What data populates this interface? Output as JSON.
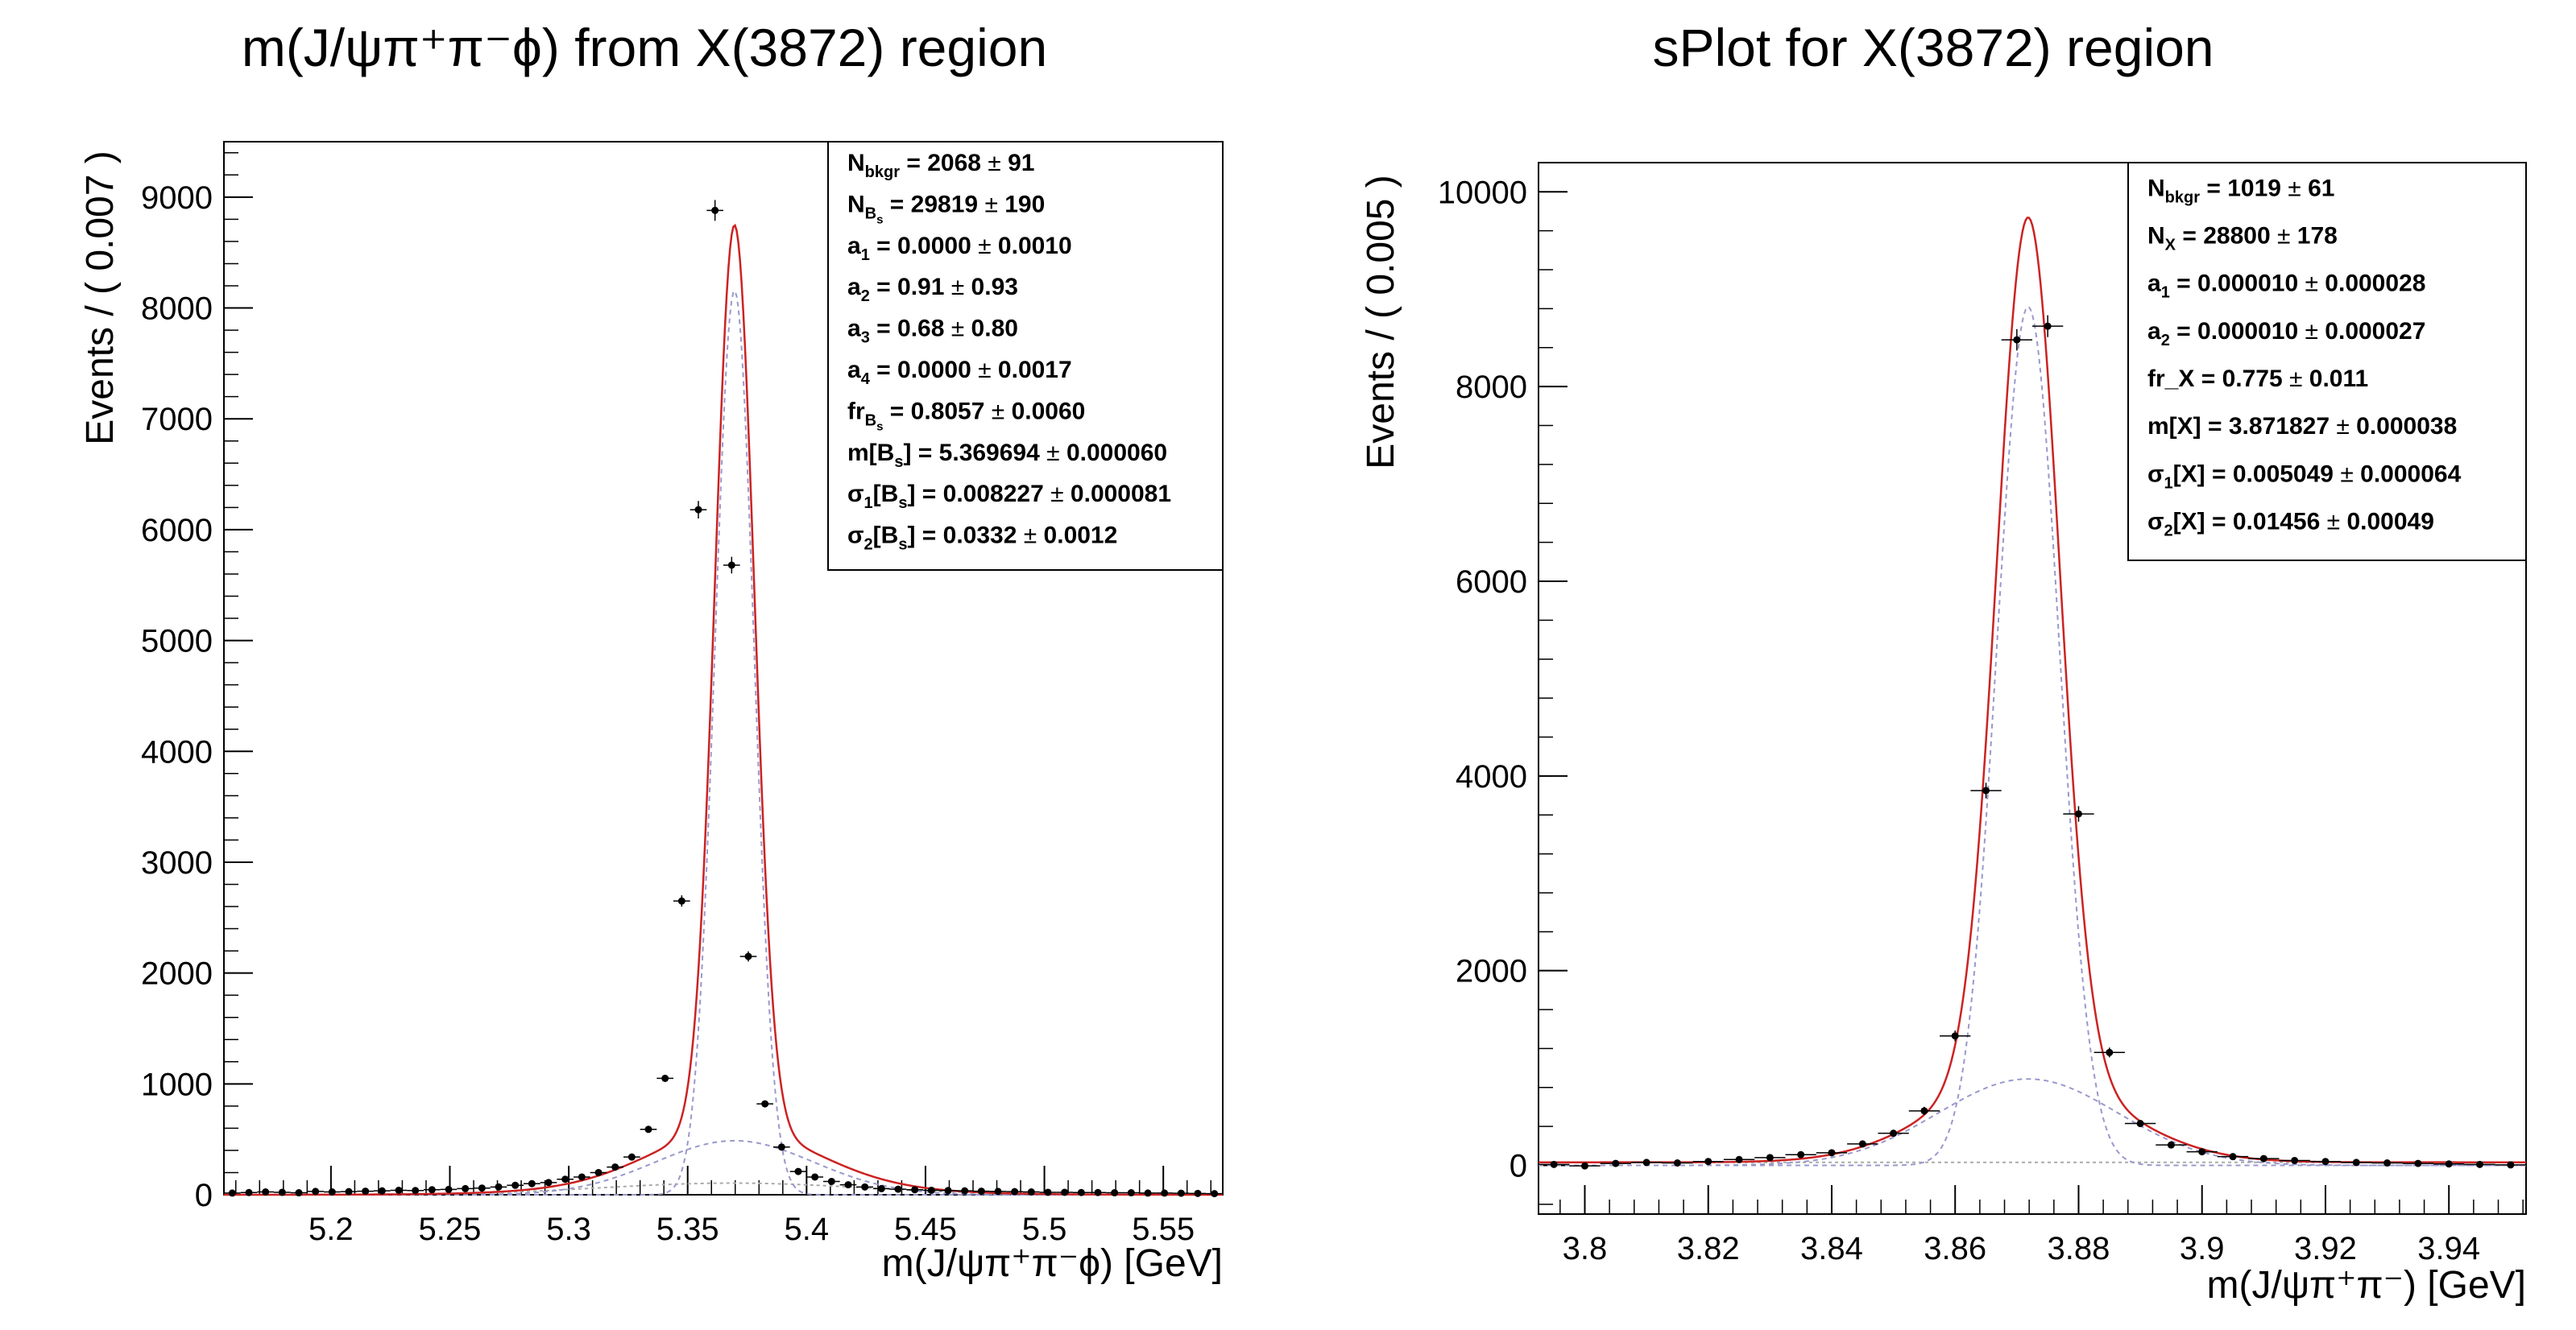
{
  "chart_data": [
    {
      "type": "scatter",
      "title": "m(J/ψπ⁺π⁻ϕ) from X(3872) region",
      "xlabel": "m(J/ψπ⁺π⁻ϕ) [GeV]",
      "ylabel": "Events / ( 0.007 )",
      "xlim": [
        5.155,
        5.575
      ],
      "ylim": [
        0,
        9500
      ],
      "x_ticks": [
        5.2,
        5.25,
        5.3,
        5.35,
        5.4,
        5.45,
        5.5,
        5.55
      ],
      "x_tick_labels": [
        "5.2",
        "5.25",
        "5.3",
        "5.35",
        "5.4",
        "5.45",
        "5.5",
        "5.55"
      ],
      "y_ticks": [
        0,
        1000,
        2000,
        3000,
        4000,
        5000,
        6000,
        7000,
        8000,
        9000
      ],
      "y_tick_labels": [
        "0",
        "1000",
        "2000",
        "3000",
        "4000",
        "5000",
        "6000",
        "7000",
        "8000",
        "9000"
      ],
      "bin_width": 0.007,
      "x": [
        5.1585,
        5.1655,
        5.1725,
        5.1795,
        5.1865,
        5.1935,
        5.2005,
        5.2075,
        5.2145,
        5.2215,
        5.2285,
        5.2355,
        5.2425,
        5.2495,
        5.2565,
        5.2635,
        5.2705,
        5.2775,
        5.2845,
        5.2915,
        5.2985,
        5.3055,
        5.3125,
        5.3195,
        5.3265,
        5.3335,
        5.3405,
        5.3475,
        5.3545,
        5.3615,
        5.3685,
        5.3755,
        5.3825,
        5.3895,
        5.3965,
        5.4035,
        5.4105,
        5.4175,
        5.4245,
        5.4315,
        5.4385,
        5.4455,
        5.4525,
        5.4595,
        5.4665,
        5.4735,
        5.4805,
        5.4875,
        5.4945,
        5.5015,
        5.5085,
        5.5155,
        5.5225,
        5.5295,
        5.5365,
        5.5435,
        5.5505,
        5.5575,
        5.5645,
        5.5715
      ],
      "y": [
        15,
        20,
        25,
        22,
        18,
        30,
        25,
        28,
        32,
        35,
        40,
        38,
        45,
        48,
        55,
        60,
        70,
        85,
        100,
        110,
        140,
        160,
        200,
        250,
        340,
        590,
        1050,
        2650,
        6180,
        8880,
        5680,
        2150,
        820,
        430,
        210,
        160,
        120,
        90,
        70,
        55,
        50,
        45,
        40,
        38,
        35,
        32,
        30,
        28,
        25,
        22,
        22,
        20,
        20,
        18,
        18,
        15,
        15,
        14,
        12,
        10
      ],
      "yerr": [
        4,
        4,
        5,
        5,
        4,
        5,
        5,
        5,
        6,
        6,
        6,
        6,
        7,
        7,
        7,
        8,
        8,
        9,
        10,
        10,
        12,
        13,
        14,
        16,
        18,
        24,
        32,
        51,
        79,
        94,
        75,
        46,
        29,
        21,
        15,
        13,
        11,
        9,
        8,
        7,
        7,
        7,
        6,
        6,
        6,
        6,
        5,
        5,
        5,
        5,
        5,
        4,
        4,
        4,
        4,
        4,
        4,
        4,
        3,
        3
      ],
      "legend": "top-right",
      "stats": [
        {
          "label": "N",
          "sub": "bkgr",
          "value": "2068",
          "error": "91"
        },
        {
          "label": "N",
          "sub": "B",
          "subsub": "s",
          "value": "29819",
          "error": "190"
        },
        {
          "label": "a",
          "sub": "1",
          "value": "0.0000",
          "error": "0.0010"
        },
        {
          "label": "a",
          "sub": "2",
          "value": "0.91",
          "error": "0.93"
        },
        {
          "label": "a",
          "sub": "3",
          "value": "0.68",
          "error": "0.80"
        },
        {
          "label": "a",
          "sub": "4",
          "value": "0.0000",
          "error": "0.0017"
        },
        {
          "label": "fr",
          "sub": "B",
          "subsub": "s",
          "value": "0.8057",
          "error": "0.0060"
        },
        {
          "label": "m[B",
          "sub": "s",
          "suffix": "]",
          "value": "5.369694",
          "error": "0.000060"
        },
        {
          "label": "σ",
          "sub": "1",
          "mid": "[B",
          "sub2": "s",
          "suffix": "]",
          "value": "0.008227",
          "error": "0.000081"
        },
        {
          "label": "σ",
          "sub": "2",
          "mid": "[B",
          "sub2": "s",
          "suffix": "]",
          "value": "0.0332",
          "error": "0.0012"
        }
      ],
      "model": {
        "mean": 5.369694,
        "sigma1": 0.008227,
        "sigma2": 0.0332,
        "frac_core": 0.8057,
        "n_sig": 29819,
        "n_bkg": 2068,
        "bkg_shape": "gaussian",
        "bkg_mean": 5.369,
        "bkg_sigma": 0.055
      },
      "colors": {
        "total": "#cc2222",
        "component": "#9999cc",
        "background": "#aaaaaa",
        "points": "#000000"
      }
    },
    {
      "type": "scatter",
      "title": "sPlot for X(3872) region",
      "xlabel": "m(J/ψπ⁺π⁻) [GeV]",
      "ylabel": "Events / ( 0.005 )",
      "xlim": [
        3.7925,
        3.9525
      ],
      "ylim": [
        -500,
        10300
      ],
      "x_ticks": [
        3.8,
        3.82,
        3.84,
        3.86,
        3.88,
        3.9,
        3.92,
        3.94
      ],
      "x_tick_labels": [
        "3.8",
        "3.82",
        "3.84",
        "3.86",
        "3.88",
        "3.9",
        "3.92",
        "3.94"
      ],
      "y_ticks": [
        0,
        2000,
        4000,
        6000,
        8000,
        10000
      ],
      "y_tick_labels": [
        "0",
        "2000",
        "4000",
        "6000",
        "8000",
        "10000"
      ],
      "bin_width": 0.005,
      "x": [
        3.795,
        3.8,
        3.805,
        3.81,
        3.815,
        3.82,
        3.825,
        3.83,
        3.835,
        3.84,
        3.845,
        3.85,
        3.855,
        3.86,
        3.865,
        3.87,
        3.875,
        3.88,
        3.885,
        3.89,
        3.895,
        3.9,
        3.905,
        3.91,
        3.915,
        3.92,
        3.925,
        3.93,
        3.935,
        3.94,
        3.945,
        3.95
      ],
      "y": [
        10,
        -5,
        20,
        30,
        25,
        40,
        60,
        80,
        110,
        130,
        220,
        330,
        560,
        1330,
        3850,
        8480,
        8620,
        3610,
        1160,
        430,
        210,
        140,
        90,
        70,
        50,
        40,
        30,
        25,
        20,
        15,
        10,
        5
      ],
      "yerr": [
        20,
        20,
        20,
        20,
        20,
        20,
        22,
        24,
        26,
        28,
        32,
        36,
        42,
        55,
        80,
        110,
        112,
        80,
        50,
        35,
        28,
        25,
        24,
        22,
        21,
        20,
        20,
        20,
        20,
        20,
        20,
        20
      ],
      "legend": "top-right",
      "stats": [
        {
          "label": "N",
          "sub": "bkgr",
          "value": "1019",
          "error": "61"
        },
        {
          "label": "N",
          "sub": "X",
          "value": "28800",
          "error": "178"
        },
        {
          "label": "a",
          "sub": "1",
          "value": "0.000010",
          "error": "0.000028"
        },
        {
          "label": "a",
          "sub": "2",
          "value": "0.000010",
          "error": "0.000027"
        },
        {
          "label": "fr_X",
          "value": "0.775",
          "error": "0.011"
        },
        {
          "label": "m[X]",
          "value": "3.871827",
          "error": "0.000038"
        },
        {
          "label": "σ",
          "sub": "1",
          "suffix": "[X]",
          "value": "0.005049",
          "error": "0.000064"
        },
        {
          "label": "σ",
          "sub": "2",
          "suffix": "[X]",
          "value": "0.01456",
          "error": "0.00049"
        }
      ],
      "model": {
        "mean": 3.871827,
        "sigma1": 0.005049,
        "sigma2": 0.01456,
        "frac_core": 0.775,
        "n_sig": 28800,
        "n_bkg": 1019,
        "bkg_shape": "flat"
      },
      "colors": {
        "total": "#cc2222",
        "component": "#9999cc",
        "background": "#aaaaaa",
        "points": "#000000"
      }
    }
  ]
}
